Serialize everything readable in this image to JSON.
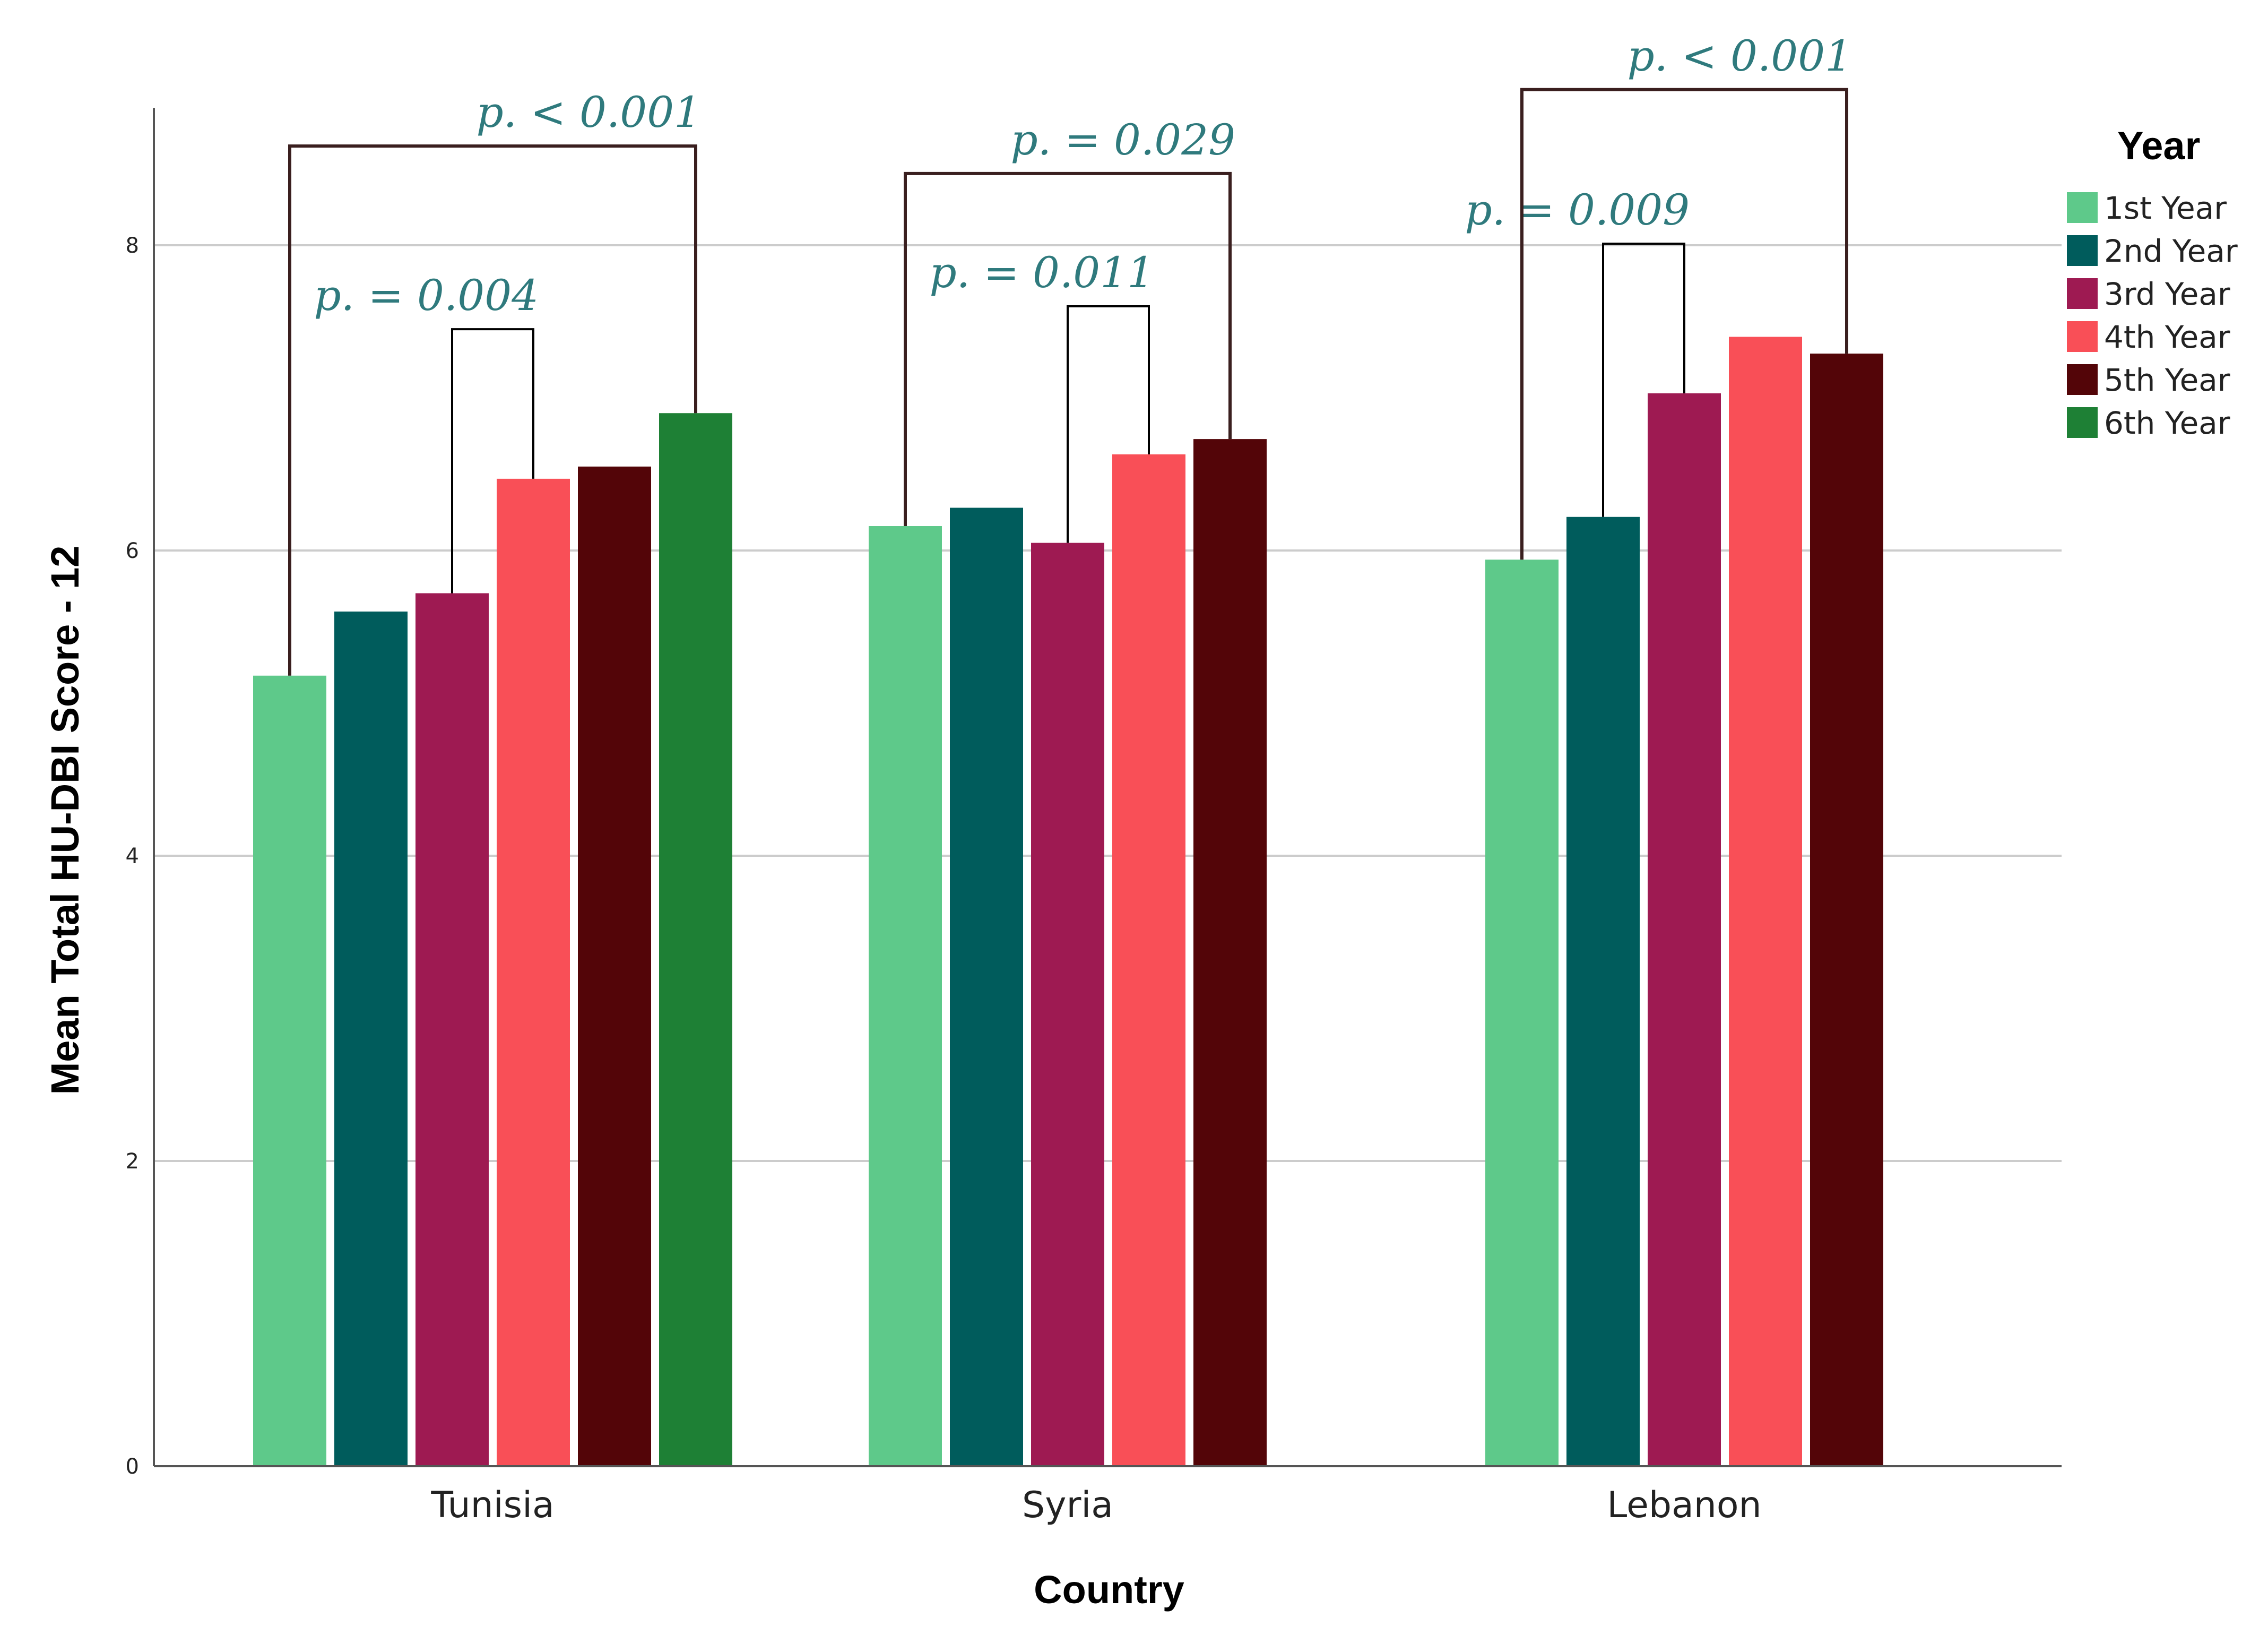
{
  "chart_data": {
    "type": "bar",
    "title": "",
    "xlabel": "Country",
    "ylabel": "Mean Total HU-DBI Score - 12",
    "ylim": [
      0,
      8.9
    ],
    "yticks": [
      0,
      2,
      4,
      6,
      8
    ],
    "grid": true,
    "legend_title": "Year",
    "legend_position": "right",
    "categories": [
      "Tunisia",
      "Syria",
      "Lebanon"
    ],
    "series": [
      {
        "name": "1st Year",
        "color": "#5ec98a",
        "values": [
          5.18,
          6.16,
          5.94
        ]
      },
      {
        "name": "2nd Year",
        "color": "#005c5c",
        "values": [
          5.6,
          6.28,
          6.22
        ]
      },
      {
        "name": "3rd Year",
        "color": "#9e1a52",
        "values": [
          5.72,
          6.05,
          7.03
        ]
      },
      {
        "name": "4th Year",
        "color": "#f94f57",
        "values": [
          6.47,
          6.63,
          7.4
        ]
      },
      {
        "name": "5th Year",
        "color": "#530508",
        "values": [
          6.55,
          6.73,
          7.29
        ]
      },
      {
        "name": "6th Year",
        "color": "#1e8035",
        "values": [
          6.9,
          null,
          null
        ]
      }
    ],
    "annotations": [
      {
        "category": "Tunisia",
        "from": "1st Year",
        "to": "6th Year",
        "label": "p. < 0.001",
        "level": 8.65,
        "color": "#3a1f1f"
      },
      {
        "category": "Tunisia",
        "from": "3rd Year",
        "to": "4th Year",
        "label": "p.  = 0.004",
        "level": 7.45,
        "color": "#000000"
      },
      {
        "category": "Syria",
        "from": "1st Year",
        "to": "5th Year",
        "label": "p. = 0.029",
        "level": 8.47,
        "color": "#3a1f1f"
      },
      {
        "category": "Syria",
        "from": "3rd Year",
        "to": "4th Year",
        "label": "p.  = 0.011",
        "level": 7.6,
        "color": "#000000"
      },
      {
        "category": "Lebanon",
        "from": "1st Year",
        "to": "5th Year",
        "label": "p. < 0.001",
        "level": 9.02,
        "color": "#3a1f1f"
      },
      {
        "category": "Lebanon",
        "from": "2nd Year",
        "to": "3rd Year",
        "label": "p. = 0.009",
        "level": 8.01,
        "color": "#000000"
      }
    ]
  }
}
